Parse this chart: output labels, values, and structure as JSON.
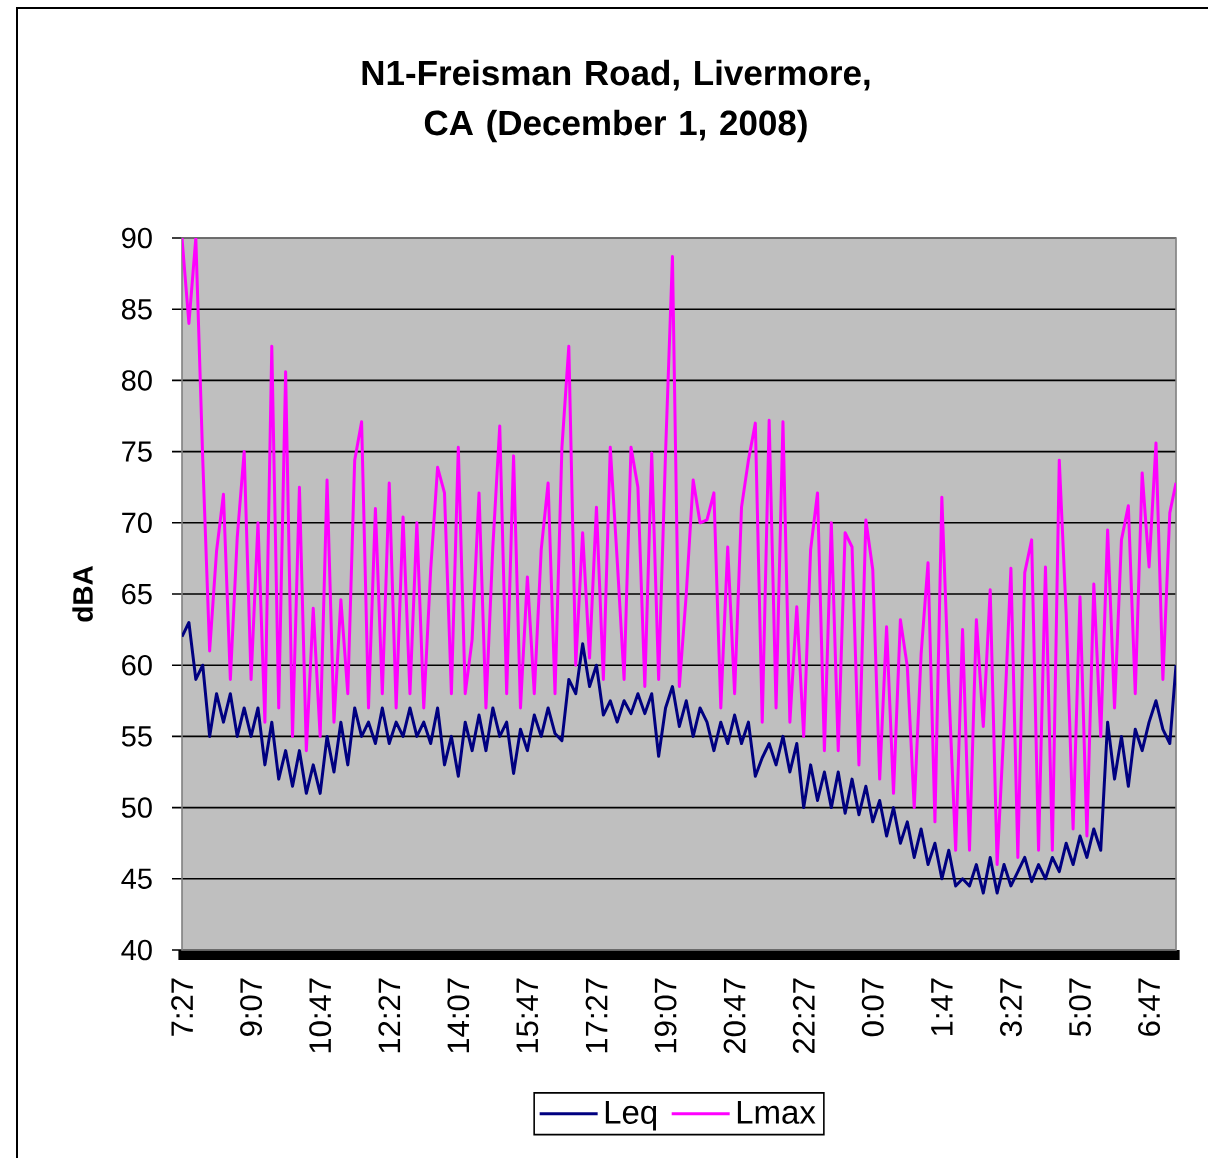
{
  "chart_data": {
    "type": "line",
    "title": "N1-Freisman Road, Livermore, CA (December 1, 2008)",
    "ylabel": "dBA",
    "x": [
      "2008-12-01T07:27",
      "2008-12-01T07:37",
      "2008-12-01T07:47",
      "2008-12-01T07:57",
      "2008-12-01T08:07",
      "2008-12-01T08:17",
      "2008-12-01T08:27",
      "2008-12-01T08:37",
      "2008-12-01T08:47",
      "2008-12-01T08:57",
      "2008-12-01T09:07",
      "2008-12-01T09:17",
      "2008-12-01T09:27",
      "2008-12-01T09:37",
      "2008-12-01T09:47",
      "2008-12-01T09:57",
      "2008-12-01T10:07",
      "2008-12-01T10:17",
      "2008-12-01T10:27",
      "2008-12-01T10:37",
      "2008-12-01T10:47",
      "2008-12-01T10:57",
      "2008-12-01T11:07",
      "2008-12-01T11:17",
      "2008-12-01T11:27",
      "2008-12-01T11:37",
      "2008-12-01T11:47",
      "2008-12-01T11:57",
      "2008-12-01T12:07",
      "2008-12-01T12:17",
      "2008-12-01T12:27",
      "2008-12-01T12:37",
      "2008-12-01T12:47",
      "2008-12-01T12:57",
      "2008-12-01T13:07",
      "2008-12-01T13:17",
      "2008-12-01T13:27",
      "2008-12-01T13:37",
      "2008-12-01T13:47",
      "2008-12-01T13:57",
      "2008-12-01T14:07",
      "2008-12-01T14:17",
      "2008-12-01T14:27",
      "2008-12-01T14:37",
      "2008-12-01T14:47",
      "2008-12-01T14:57",
      "2008-12-01T15:07",
      "2008-12-01T15:17",
      "2008-12-01T15:27",
      "2008-12-01T15:37",
      "2008-12-01T15:47",
      "2008-12-01T15:57",
      "2008-12-01T16:07",
      "2008-12-01T16:17",
      "2008-12-01T16:27",
      "2008-12-01T16:37",
      "2008-12-01T16:47",
      "2008-12-01T16:57",
      "2008-12-01T17:07",
      "2008-12-01T17:17",
      "2008-12-01T17:27",
      "2008-12-01T17:37",
      "2008-12-01T17:47",
      "2008-12-01T17:57",
      "2008-12-01T18:07",
      "2008-12-01T18:17",
      "2008-12-01T18:27",
      "2008-12-01T18:37",
      "2008-12-01T18:47",
      "2008-12-01T18:57",
      "2008-12-01T19:07",
      "2008-12-01T19:17",
      "2008-12-01T19:27",
      "2008-12-01T19:37",
      "2008-12-01T19:47",
      "2008-12-01T19:57",
      "2008-12-01T20:07",
      "2008-12-01T20:17",
      "2008-12-01T20:27",
      "2008-12-01T20:37",
      "2008-12-01T20:47",
      "2008-12-01T20:57",
      "2008-12-01T21:07",
      "2008-12-01T21:17",
      "2008-12-01T21:27",
      "2008-12-01T21:37",
      "2008-12-01T21:47",
      "2008-12-01T21:57",
      "2008-12-01T22:07",
      "2008-12-01T22:17",
      "2008-12-01T22:27",
      "2008-12-01T22:37",
      "2008-12-01T22:47",
      "2008-12-01T22:57",
      "2008-12-01T23:07",
      "2008-12-01T23:17",
      "2008-12-01T23:27",
      "2008-12-01T23:37",
      "2008-12-01T23:47",
      "2008-12-01T23:57",
      "2008-12-02T00:07",
      "2008-12-02T00:17",
      "2008-12-02T00:27",
      "2008-12-02T00:37",
      "2008-12-02T00:47",
      "2008-12-02T00:57",
      "2008-12-02T01:07",
      "2008-12-02T01:17",
      "2008-12-02T01:27",
      "2008-12-02T01:37",
      "2008-12-02T01:47",
      "2008-12-02T01:57",
      "2008-12-02T02:07",
      "2008-12-02T02:17",
      "2008-12-02T02:27",
      "2008-12-02T02:37",
      "2008-12-02T02:47",
      "2008-12-02T02:57",
      "2008-12-02T03:07",
      "2008-12-02T03:17",
      "2008-12-02T03:27",
      "2008-12-02T03:37",
      "2008-12-02T03:47",
      "2008-12-02T03:57",
      "2008-12-02T04:07",
      "2008-12-02T04:17",
      "2008-12-02T04:27",
      "2008-12-02T04:37",
      "2008-12-02T04:47",
      "2008-12-02T04:57",
      "2008-12-02T05:07",
      "2008-12-02T05:17",
      "2008-12-02T05:27",
      "2008-12-02T05:37",
      "2008-12-02T05:47",
      "2008-12-02T05:57",
      "2008-12-02T06:07",
      "2008-12-02T06:17",
      "2008-12-02T06:27",
      "2008-12-02T06:37",
      "2008-12-02T06:47",
      "2008-12-02T06:57",
      "2008-12-02T07:07",
      "2008-12-02T07:17",
      "2008-12-02T07:26"
    ],
    "series": [
      {
        "name": "Leq",
        "color": "#000080",
        "values": [
          62,
          63,
          59,
          60,
          55,
          58,
          56,
          58,
          55,
          57,
          55,
          57,
          53,
          56,
          52,
          54,
          51.5,
          54,
          51,
          53,
          51,
          55,
          52.5,
          56,
          53,
          57,
          55,
          56,
          54.5,
          57,
          54.5,
          56,
          55,
          57,
          55,
          56,
          54.5,
          57,
          53,
          55,
          52.2,
          56,
          54,
          56.5,
          54,
          57,
          55,
          56,
          52.4,
          55.5,
          54,
          56.5,
          55,
          57,
          55.2,
          54.7,
          59,
          58,
          61.5,
          58.5,
          60,
          56.5,
          57.5,
          56,
          57.5,
          56.6,
          58,
          56.6,
          58,
          53.6,
          57,
          58.5,
          55.7,
          57.5,
          55,
          57,
          56,
          54,
          56,
          54.5,
          56.5,
          54.5,
          56,
          52.2,
          53.5,
          54.5,
          53,
          55,
          52.5,
          54.5,
          50,
          53,
          50.5,
          52.5,
          50,
          52.5,
          49.6,
          52,
          49.5,
          51.5,
          49,
          50.5,
          48,
          50,
          47.5,
          49,
          46.5,
          48.5,
          46,
          47.5,
          45,
          47,
          44.5,
          45,
          44.5,
          46,
          44,
          46.5,
          44,
          46,
          44.5,
          45.5,
          46.5,
          44.8,
          46,
          45,
          46.5,
          45.5,
          47.5,
          46,
          48,
          46.5,
          48.5,
          47,
          56,
          52,
          55,
          51.5,
          55.5,
          54,
          56,
          57.5,
          55.5,
          54.5,
          60
        ]
      },
      {
        "name": "Lmax",
        "color": "#ff00ff",
        "values": [
          90,
          84,
          90,
          74.5,
          61,
          68,
          72,
          59,
          69,
          75,
          59,
          70,
          56,
          82.4,
          57,
          80.6,
          55,
          72.5,
          54,
          64,
          55,
          73,
          56,
          64.6,
          58,
          74.4,
          77.1,
          57,
          71,
          58,
          72.8,
          57,
          70.4,
          58,
          70,
          57,
          66.7,
          73.9,
          72.1,
          58,
          75.3,
          58,
          61.8,
          72.1,
          57,
          68.3,
          76.8,
          58,
          74.7,
          57,
          66.2,
          58,
          68.1,
          72.8,
          58,
          75.3,
          82.4,
          60,
          69.3,
          60.5,
          71.1,
          59,
          75.3,
          67.4,
          59,
          75.3,
          72.5,
          58.5,
          74.9,
          59,
          74.9,
          88.7,
          58.5,
          65,
          73,
          70,
          70.2,
          72.1,
          57,
          68.3,
          58,
          71.1,
          74.4,
          77,
          56,
          77.2,
          57,
          77.1,
          56,
          64.1,
          55,
          68.1,
          72.1,
          54,
          70,
          54,
          69.3,
          68.3,
          53,
          70.2,
          66.7,
          52,
          62.7,
          51,
          63.2,
          59.9,
          50,
          60.8,
          67.2,
          49,
          71.8,
          58.5,
          47,
          62.5,
          47,
          63.2,
          55.7,
          65.3,
          46,
          55.7,
          66.8,
          46.5,
          66.5,
          68.8,
          47,
          66.9,
          47,
          74.4,
          63.6,
          48.5,
          64.8,
          48,
          65.7,
          55,
          69.5,
          57,
          68.8,
          71.2,
          58,
          73.5,
          66.9,
          75.6,
          59,
          70.7,
          72.8
        ]
      }
    ],
    "xlim": [
      "2008-12-01T07:27",
      "2008-12-02T07:26"
    ],
    "ylim": [
      40,
      90
    ],
    "xticks": [
      {
        "value": "2008-12-01T07:27",
        "label": "7:27"
      },
      {
        "value": "2008-12-01T09:07",
        "label": "9:07"
      },
      {
        "value": "2008-12-01T10:47",
        "label": "10:47"
      },
      {
        "value": "2008-12-01T12:27",
        "label": "12:27"
      },
      {
        "value": "2008-12-01T14:07",
        "label": "14:07"
      },
      {
        "value": "2008-12-01T15:47",
        "label": "15:47"
      },
      {
        "value": "2008-12-01T17:27",
        "label": "17:27"
      },
      {
        "value": "2008-12-01T19:07",
        "label": "19:07"
      },
      {
        "value": "2008-12-01T20:47",
        "label": "20:47"
      },
      {
        "value": "2008-12-01T22:27",
        "label": "22:27"
      },
      {
        "value": "2008-12-02T00:07",
        "label": "0:07"
      },
      {
        "value": "2008-12-02T01:47",
        "label": "1:47"
      },
      {
        "value": "2008-12-02T03:27",
        "label": "3:27"
      },
      {
        "value": "2008-12-02T05:07",
        "label": "5:07"
      },
      {
        "value": "2008-12-02T06:47",
        "label": "6:47"
      }
    ],
    "yticks": [
      40,
      45,
      50,
      55,
      60,
      65,
      70,
      75,
      80,
      85,
      90
    ],
    "grid": "y",
    "legend": "bottom"
  }
}
